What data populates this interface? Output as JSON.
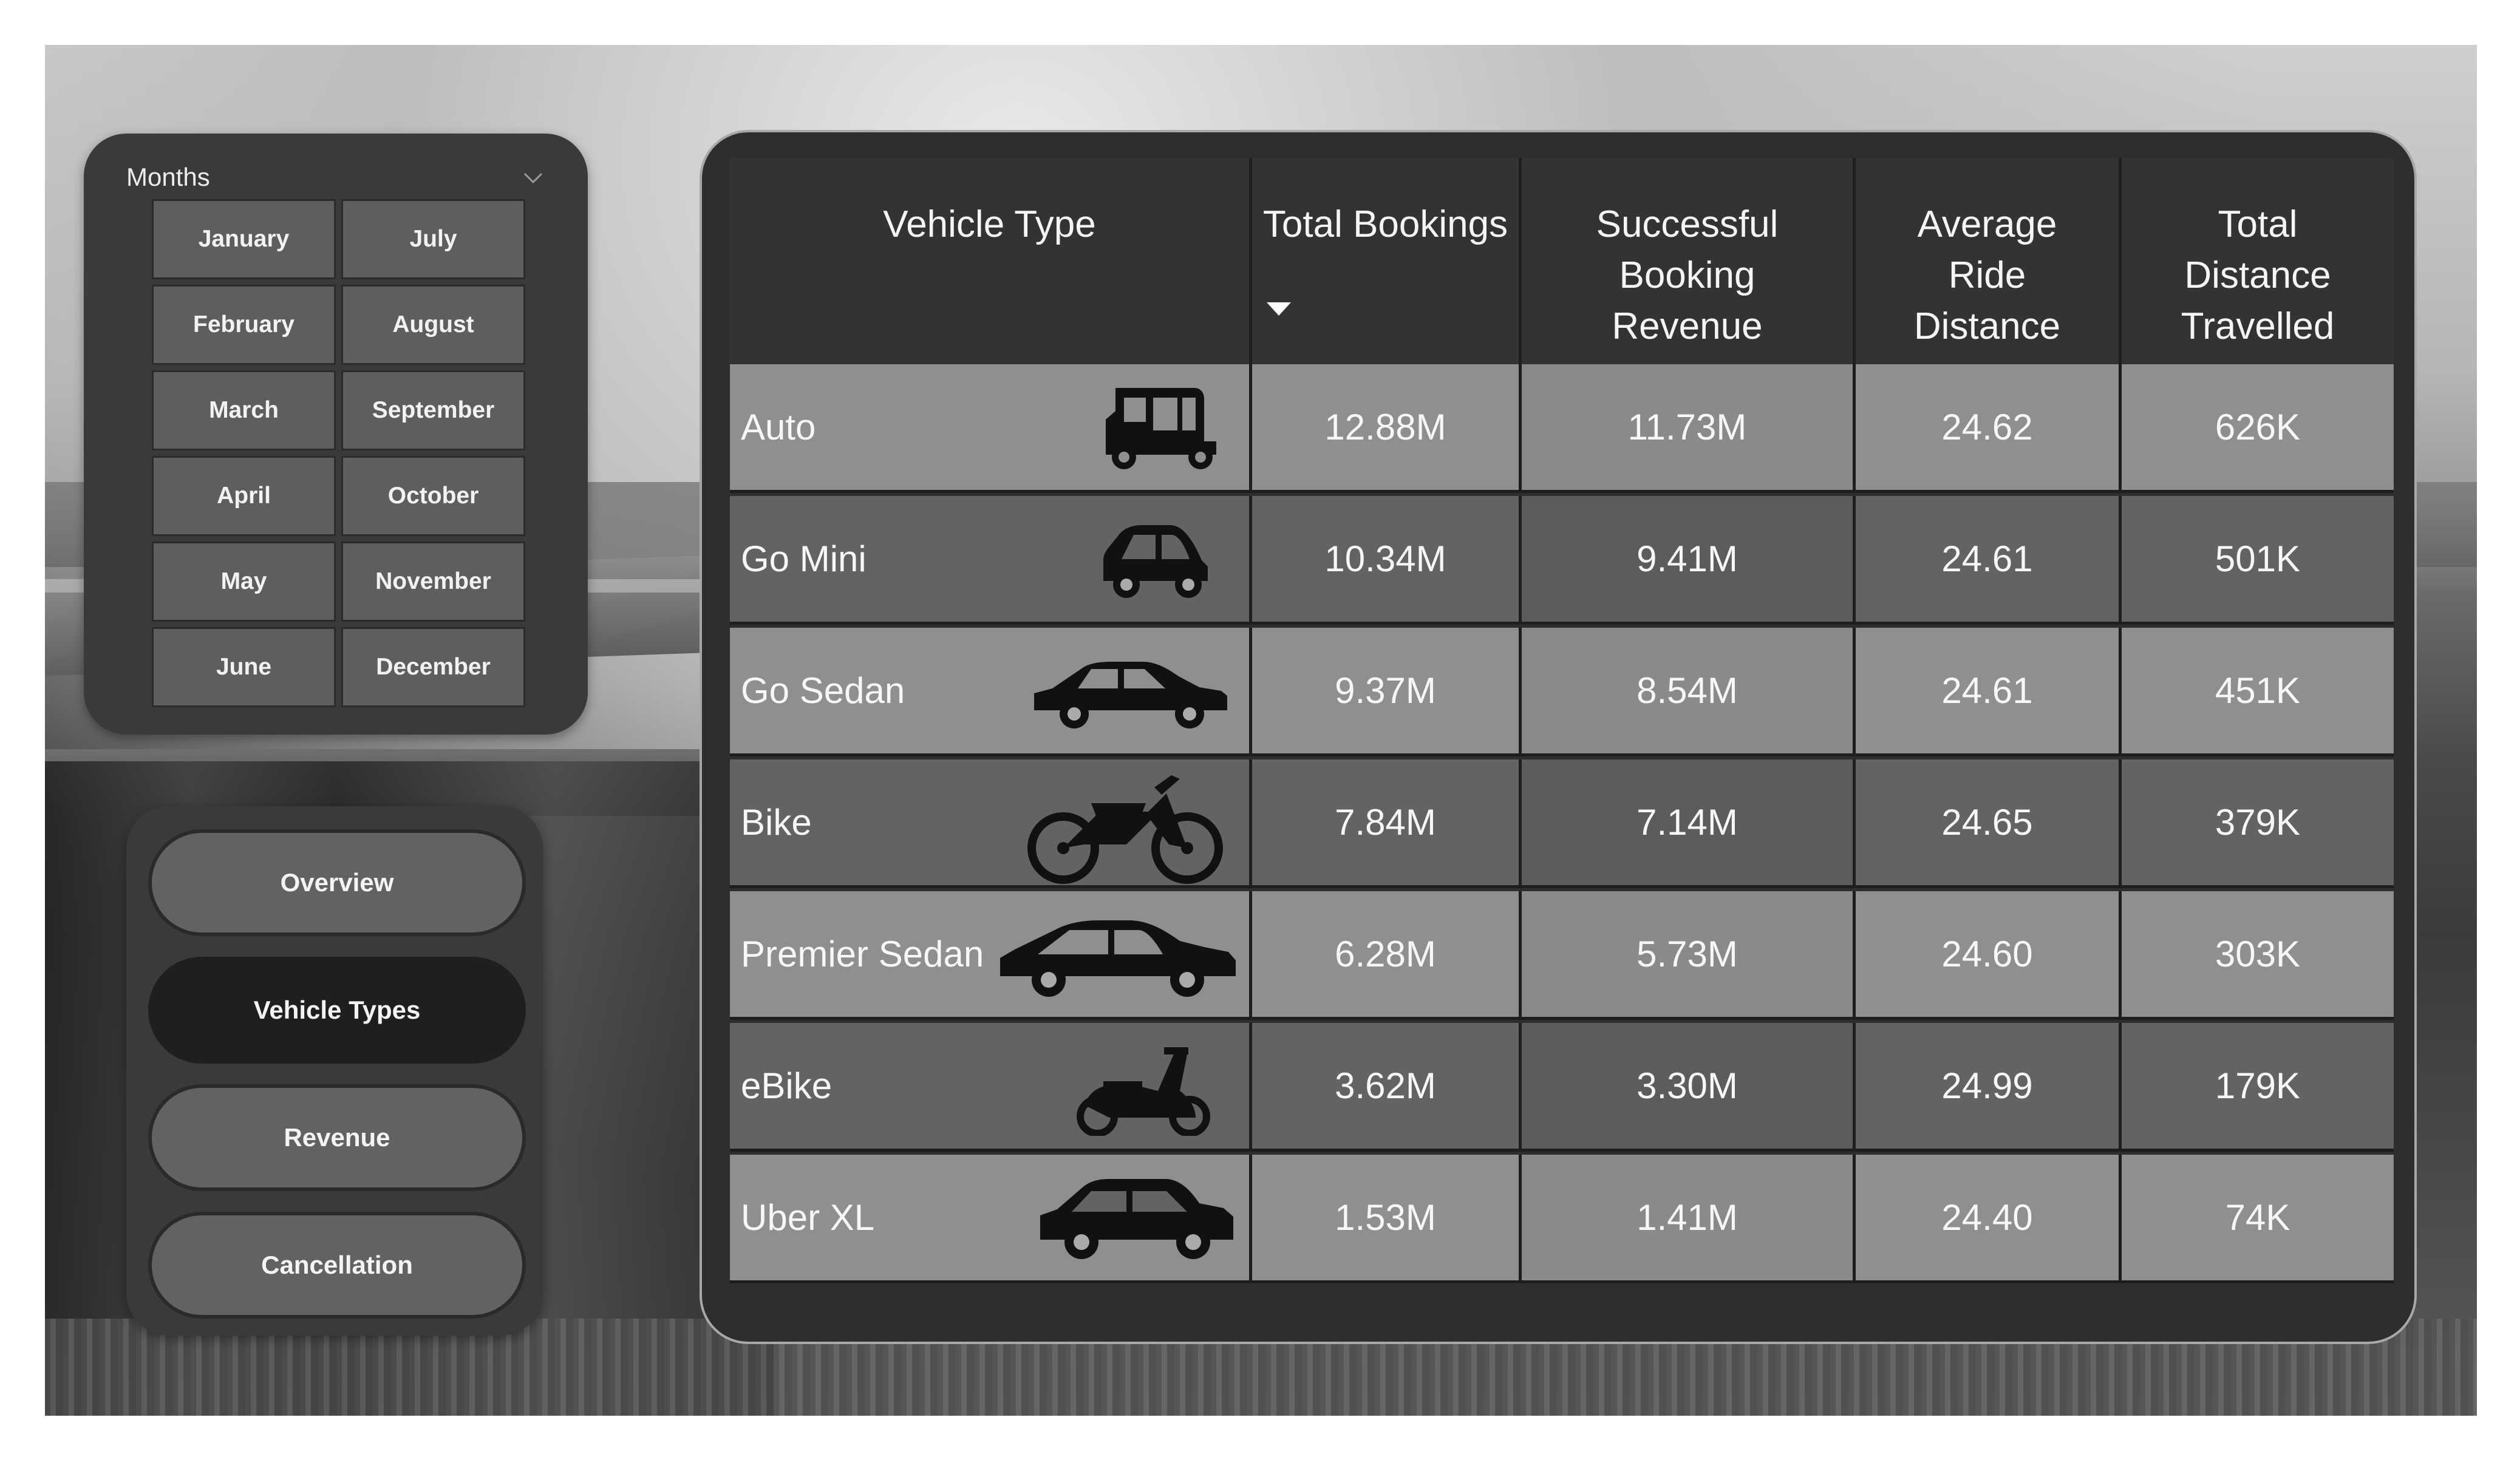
{
  "months_slicer": {
    "title": "Months",
    "months": [
      {
        "label": "January"
      },
      {
        "label": "July"
      },
      {
        "label": "February"
      },
      {
        "label": "August"
      },
      {
        "label": "March"
      },
      {
        "label": "September"
      },
      {
        "label": "April"
      },
      {
        "label": "October"
      },
      {
        "label": "May"
      },
      {
        "label": "November"
      },
      {
        "label": "June"
      },
      {
        "label": "December"
      }
    ]
  },
  "navigation": {
    "items": [
      {
        "label": "Overview",
        "active": false
      },
      {
        "label": "Vehicle Types",
        "active": true
      },
      {
        "label": "Revenue",
        "active": false
      },
      {
        "label": "Cancellation",
        "active": false
      }
    ]
  },
  "table": {
    "columns": [
      {
        "label": "Vehicle Type"
      },
      {
        "label": "Total Bookings"
      },
      {
        "label": "Successful Booking Revenue"
      },
      {
        "label": "Average Ride Distance"
      },
      {
        "label": "Total Distance Travelled"
      }
    ],
    "sorted_column": "Total Bookings",
    "sort_direction": "descending",
    "rows": [
      {
        "vehicle": "Auto",
        "icon": "auto-rickshaw-icon",
        "bookings": "12.88M",
        "revenue": "11.73M",
        "avg_distance": "24.62",
        "total_distance": "626K"
      },
      {
        "vehicle": "Go Mini",
        "icon": "mini-car-icon",
        "bookings": "10.34M",
        "revenue": "9.41M",
        "avg_distance": "24.61",
        "total_distance": "501K"
      },
      {
        "vehicle": "Go Sedan",
        "icon": "sedan-icon",
        "bookings": "9.37M",
        "revenue": "8.54M",
        "avg_distance": "24.61",
        "total_distance": "451K"
      },
      {
        "vehicle": "Bike",
        "icon": "motorcycle-icon",
        "bookings": "7.84M",
        "revenue": "7.14M",
        "avg_distance": "24.65",
        "total_distance": "379K"
      },
      {
        "vehicle": "Premier Sedan",
        "icon": "premium-sedan-icon",
        "bookings": "6.28M",
        "revenue": "5.73M",
        "avg_distance": "24.60",
        "total_distance": "303K"
      },
      {
        "vehicle": "eBike",
        "icon": "scooter-icon",
        "bookings": "3.62M",
        "revenue": "3.30M",
        "avg_distance": "24.99",
        "total_distance": "179K"
      },
      {
        "vehicle": "Uber XL",
        "icon": "suv-icon",
        "bookings": "1.53M",
        "revenue": "1.41M",
        "avg_distance": "24.40",
        "total_distance": "74K"
      }
    ]
  },
  "colors": {
    "row_light": "#8f8f8f",
    "row_dark": "#636363",
    "panel_bg": "#3a3a3a",
    "header_bg": "#333333",
    "active_nav": "#1f1f1f"
  }
}
